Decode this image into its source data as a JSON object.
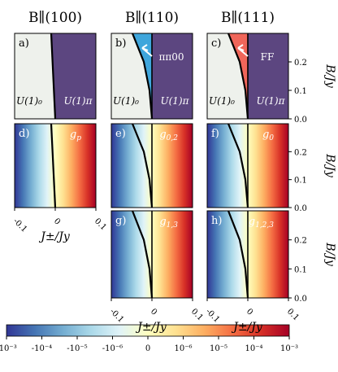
{
  "chart_data": {
    "type": "heatmap",
    "columns": [
      {
        "id": "c100",
        "title": "B∥(100)"
      },
      {
        "id": "c110",
        "title": "B∥(110)"
      },
      {
        "id": "c111",
        "title": "B∥(111)"
      }
    ],
    "x": {
      "label": "J±/Jy",
      "range": [
        -0.1,
        0.1
      ],
      "ticks": [
        -0.1,
        0,
        0.1
      ],
      "tick_labels": [
        "-0.1",
        "0",
        "0.1"
      ]
    },
    "y": {
      "label": "B/Jy",
      "range": [
        0.0,
        0.3
      ],
      "ticks": [
        0.0,
        0.1,
        0.2
      ],
      "tick_labels": [
        "0.0",
        "0.1",
        "0.2"
      ]
    },
    "phase_panels": [
      {
        "panel": "a)",
        "column": "c100",
        "regions": [
          "U(1)₀",
          "U(1)π"
        ],
        "boundary": [
          [
            -0.01,
            0.3
          ],
          [
            -0.005,
            0.15
          ],
          [
            0.0,
            0.0
          ]
        ]
      },
      {
        "panel": "b)",
        "column": "c110",
        "regions": [
          "U(1)₀",
          "U(1)π",
          "ππ00"
        ],
        "boundary": [
          [
            -0.048,
            0.3
          ],
          [
            -0.02,
            0.2
          ],
          [
            -0.006,
            0.1
          ],
          [
            0.0,
            0.0
          ]
        ],
        "extra_phase": {
          "name": "ππ00",
          "color": "#3fa6dc",
          "between": [
            [
              -0.048,
              0.3
            ],
            [
              0.0,
              0.0
            ]
          ]
        }
      },
      {
        "panel": "c)",
        "column": "c111",
        "regions": [
          "U(1)₀",
          "U(1)π",
          "FF"
        ],
        "boundary": [
          [
            -0.048,
            0.3
          ],
          [
            -0.02,
            0.2
          ],
          [
            -0.006,
            0.1
          ],
          [
            0.0,
            0.0
          ]
        ],
        "extra_phase": {
          "name": "FF",
          "color": "#f0665a",
          "between": [
            [
              -0.048,
              0.3
            ],
            [
              0.0,
              0.0
            ]
          ]
        }
      }
    ],
    "color_panels": [
      {
        "panel": "d)",
        "label": "g_p",
        "column": "c100",
        "row": 1
      },
      {
        "panel": "e)",
        "label": "g_{0,2}",
        "column": "c110",
        "row": 1
      },
      {
        "panel": "f)",
        "label": "g_0",
        "column": "c111",
        "row": 1
      },
      {
        "panel": "g)",
        "label": "g_{1,3}",
        "column": "c110",
        "row": 2
      },
      {
        "panel": "h)",
        "label": "g_{1,2,3}",
        "column": "c111",
        "row": 2
      }
    ],
    "colorbar": {
      "scale": "symlog",
      "range": [
        -0.001,
        0.001
      ],
      "ticks": [
        -0.001,
        -0.0001,
        -1e-05,
        -1e-06,
        0,
        1e-06,
        1e-05,
        0.0001,
        0.001
      ],
      "tick_labels": [
        "-10⁻³",
        "-10⁻⁴",
        "-10⁻⁵",
        "-10⁻⁶",
        "0",
        "10⁻⁶",
        "10⁻⁵",
        "10⁻⁴",
        "10⁻³"
      ],
      "colormap": "RdYlBu_r"
    },
    "colors": {
      "u1_zero": "#eef1ec",
      "u1_pi": "#5c4680",
      "boundary": "#000000"
    }
  }
}
